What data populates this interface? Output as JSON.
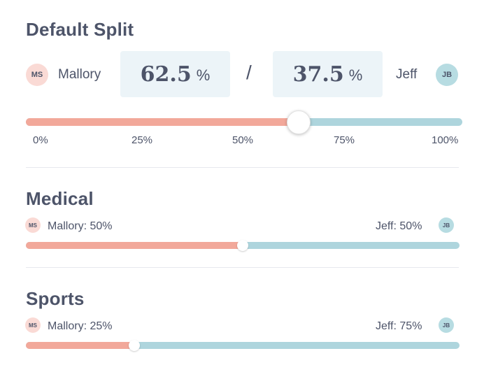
{
  "default_split": {
    "title": "Default Split",
    "left_person": {
      "initials": "MS",
      "name": "Mallory",
      "percent": "62.5",
      "unit": "%"
    },
    "separator": "/",
    "right_person": {
      "initials": "JB",
      "name": "Jeff",
      "percent": "37.5",
      "unit": "%"
    },
    "slider_value_percent": 62.5,
    "ticks": [
      "0%",
      "25%",
      "50%",
      "75%",
      "100%"
    ]
  },
  "categories": [
    {
      "title": "Medical",
      "left": {
        "initials": "MS",
        "label": "Mallory: 50%"
      },
      "right": {
        "initials": "JB",
        "label": "Jeff: 50%"
      },
      "split_percent": 50
    },
    {
      "title": "Sports",
      "left": {
        "initials": "MS",
        "label": "Mallory: 25%"
      },
      "right": {
        "initials": "JB",
        "label": "Jeff: 75%"
      },
      "split_percent": 25
    }
  ],
  "colors": {
    "left_color": "#f2a89a",
    "right_color": "#aed5dd"
  }
}
